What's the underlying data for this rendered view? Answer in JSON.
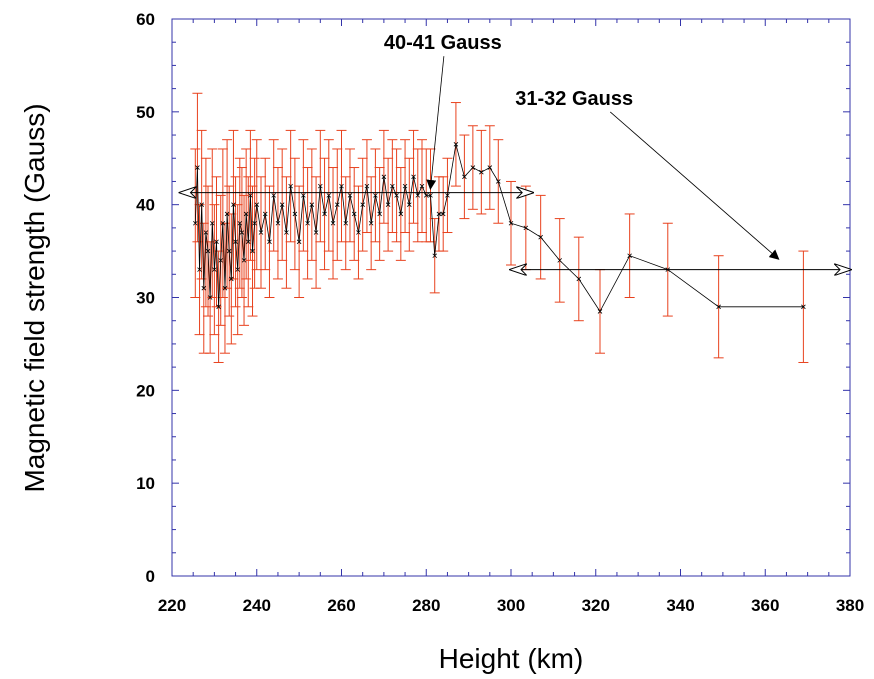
{
  "chart_data": {
    "type": "scatter",
    "title": "",
    "xlabel": "Height (km)",
    "ylabel": "Magnetic field strength (Gauss)",
    "xlim": [
      220,
      380
    ],
    "ylim": [
      0,
      60
    ],
    "xticks": [
      220,
      240,
      260,
      280,
      300,
      320,
      340,
      360,
      380
    ],
    "yticks": [
      0,
      10,
      20,
      30,
      40,
      50,
      60
    ],
    "grid": false,
    "colors": {
      "data": "#000000",
      "errorbar": "#e8421e",
      "axis": "#3333aa",
      "annotation": "#000000"
    },
    "series": [
      {
        "x": [
          225.5,
          226.0,
          226.5,
          227.0,
          227.5,
          228.0,
          228.5,
          229.0,
          229.5,
          230.0,
          230.5,
          231.0,
          231.5,
          232.0,
          232.5,
          233.0,
          233.5,
          234.0,
          234.5,
          235.0,
          235.5,
          236.0,
          236.5,
          237.0,
          237.5,
          238.0,
          238.5,
          239.0,
          239.5,
          240.0,
          241.0,
          242.0,
          243.0,
          244.0,
          245.0,
          246.0,
          247.0,
          248.0,
          249.0,
          250.0,
          251.0,
          252.0,
          253.0,
          254.0,
          255.0,
          256.0,
          257.0,
          258.0,
          259.0,
          260.0,
          261.0,
          262.0,
          263.0,
          264.0,
          265.0,
          266.0,
          267.0,
          268.0,
          269.0,
          270.0,
          271.0,
          272.0,
          273.0,
          274.0,
          275.0,
          276.0,
          277.0,
          278.0,
          279.0,
          280.0,
          281.0,
          282.0,
          283.0,
          284.0,
          285.0,
          287.0,
          289.0,
          291.0,
          293.0,
          295.0,
          297.0,
          300.0,
          303.5,
          307.0,
          311.5,
          316.0,
          321.0,
          328.0,
          337.0,
          349.0,
          369.0
        ],
        "y": [
          38,
          44,
          33,
          40,
          31,
          37,
          35,
          30,
          38,
          33,
          36,
          29,
          34,
          38,
          31,
          39,
          35,
          32,
          40,
          36,
          33,
          38,
          37,
          34,
          39,
          36,
          41,
          35,
          38,
          40,
          37,
          39,
          36,
          41,
          38,
          40,
          37,
          42,
          39,
          36,
          41,
          38,
          40,
          37,
          42,
          39,
          41,
          38,
          40,
          42,
          38,
          41,
          39,
          37,
          40,
          42,
          38,
          41,
          39,
          43,
          40,
          42,
          41,
          39,
          42,
          40,
          43,
          41,
          42,
          41,
          41,
          34.5,
          39,
          39,
          41,
          46.5,
          43,
          44,
          43.5,
          44,
          42.5,
          38,
          37.5,
          36.5,
          34,
          32,
          28.5,
          34.5,
          33,
          29,
          29
        ],
        "err": [
          8,
          8,
          7,
          8,
          7,
          8,
          7,
          6,
          8,
          7,
          7,
          6,
          7,
          8,
          7,
          8,
          7,
          7,
          8,
          7,
          7,
          7,
          7,
          7,
          7,
          7,
          7,
          7,
          7,
          7,
          6,
          6,
          6,
          6,
          6,
          6,
          6,
          6,
          6,
          6,
          6,
          6,
          6,
          6,
          6,
          6,
          6,
          6,
          6,
          6,
          5,
          5,
          5,
          5,
          5,
          5,
          5,
          5,
          5,
          5,
          5,
          5,
          5,
          5,
          5,
          5,
          5,
          5,
          5,
          5,
          5,
          4,
          4,
          4,
          4,
          4.5,
          4.5,
          4.5,
          4.5,
          4.5,
          4.5,
          4.5,
          4.5,
          4.5,
          4.5,
          4.5,
          4.5,
          4.5,
          5,
          5.5,
          6
        ]
      }
    ],
    "ranges": [
      {
        "xstart": 222,
        "xend": 305,
        "y": 41.3
      },
      {
        "xstart": 300,
        "xend": 380,
        "y": 33
      }
    ],
    "annotations": [
      {
        "text": "40-41 Gauss",
        "x": 270,
        "y": 57.5,
        "ax": 281,
        "ay": 41.8
      },
      {
        "text": "31-32 Gauss",
        "x": 301,
        "y": 51.5,
        "ax": 363,
        "ay": 34.2
      }
    ]
  }
}
